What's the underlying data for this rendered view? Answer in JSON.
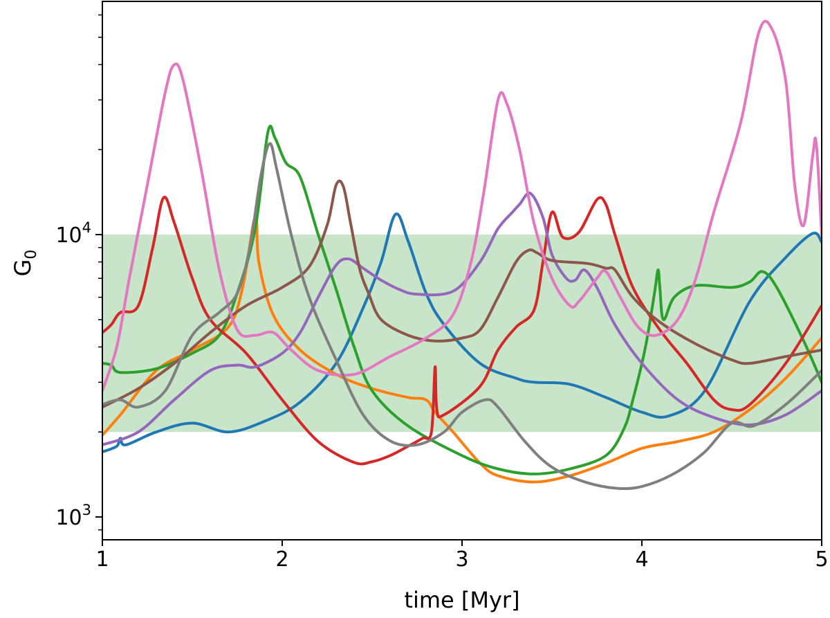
{
  "chart_data": {
    "type": "line",
    "title": "",
    "xlabel": "time [Myr]",
    "ylabel_main": "G",
    "ylabel_sub": "0",
    "yscale": "log",
    "xlim": [
      1,
      5
    ],
    "ylim": [
      830,
      67000
    ],
    "x_ticks": [
      {
        "value": 1,
        "label": "1"
      },
      {
        "value": 2,
        "label": "2"
      },
      {
        "value": 3,
        "label": "3"
      },
      {
        "value": 4,
        "label": "4"
      },
      {
        "value": 5,
        "label": "5"
      }
    ],
    "y_ticks": [
      {
        "value": 1000,
        "base": "10",
        "exp": "3"
      },
      {
        "value": 10000,
        "base": "10",
        "exp": "4"
      }
    ],
    "band": {
      "y0": 2000,
      "y1": 10000,
      "color": "#c9e5c9"
    },
    "grid": false,
    "legend": "none",
    "series": [
      {
        "name": "blue",
        "color": "#1f77b4",
        "points": [
          [
            1,
            1700
          ],
          [
            1.08,
            1780
          ],
          [
            1.1,
            1900
          ],
          [
            1.13,
            1800
          ],
          [
            1.3,
            2000
          ],
          [
            1.5,
            2150
          ],
          [
            1.7,
            2000
          ],
          [
            1.9,
            2180
          ],
          [
            2.1,
            2550
          ],
          [
            2.3,
            3500
          ],
          [
            2.45,
            5500
          ],
          [
            2.55,
            8000
          ],
          [
            2.63,
            11800
          ],
          [
            2.7,
            9500
          ],
          [
            2.8,
            6200
          ],
          [
            2.9,
            4800
          ],
          [
            3.1,
            3500
          ],
          [
            3.3,
            3100
          ],
          [
            3.4,
            3000
          ],
          [
            3.6,
            2950
          ],
          [
            3.8,
            2650
          ],
          [
            4.0,
            2350
          ],
          [
            4.15,
            2280
          ],
          [
            4.35,
            2800
          ],
          [
            4.6,
            5800
          ],
          [
            4.8,
            8300
          ],
          [
            4.95,
            10100
          ],
          [
            5.0,
            9400
          ]
        ]
      },
      {
        "name": "orange",
        "color": "#ff7f0e",
        "points": [
          [
            1,
            1950
          ],
          [
            1.1,
            2300
          ],
          [
            1.3,
            3300
          ],
          [
            1.5,
            3900
          ],
          [
            1.7,
            4700
          ],
          [
            1.78,
            6500
          ],
          [
            1.85,
            11600
          ],
          [
            1.87,
            8000
          ],
          [
            1.95,
            5200
          ],
          [
            2.1,
            3900
          ],
          [
            2.3,
            3200
          ],
          [
            2.5,
            2850
          ],
          [
            2.7,
            2650
          ],
          [
            2.8,
            2600
          ],
          [
            2.85,
            2350
          ],
          [
            2.95,
            2000
          ],
          [
            3.1,
            1550
          ],
          [
            3.2,
            1400
          ],
          [
            3.4,
            1330
          ],
          [
            3.6,
            1400
          ],
          [
            3.8,
            1550
          ],
          [
            4.0,
            1750
          ],
          [
            4.2,
            1850
          ],
          [
            4.4,
            2000
          ],
          [
            4.6,
            2400
          ],
          [
            4.8,
            3100
          ],
          [
            5.0,
            4300
          ]
        ]
      },
      {
        "name": "green",
        "color": "#2ca02c",
        "points": [
          [
            1,
            3500
          ],
          [
            1.05,
            3450
          ],
          [
            1.1,
            3250
          ],
          [
            1.3,
            3350
          ],
          [
            1.5,
            3800
          ],
          [
            1.65,
            4400
          ],
          [
            1.75,
            6200
          ],
          [
            1.85,
            10500
          ],
          [
            1.92,
            23000
          ],
          [
            1.96,
            22000
          ],
          [
            2.02,
            18000
          ],
          [
            2.1,
            16000
          ],
          [
            2.2,
            10000
          ],
          [
            2.3,
            6400
          ],
          [
            2.4,
            4000
          ],
          [
            2.5,
            2800
          ],
          [
            2.7,
            2100
          ],
          [
            3.0,
            1650
          ],
          [
            3.2,
            1480
          ],
          [
            3.4,
            1420
          ],
          [
            3.6,
            1480
          ],
          [
            3.8,
            1650
          ],
          [
            3.9,
            2050
          ],
          [
            3.95,
            2600
          ],
          [
            4.02,
            4000
          ],
          [
            4.07,
            6200
          ],
          [
            4.09,
            7500
          ],
          [
            4.1,
            6500
          ],
          [
            4.12,
            5000
          ],
          [
            4.18,
            6000
          ],
          [
            4.3,
            6600
          ],
          [
            4.5,
            6500
          ],
          [
            4.6,
            6800
          ],
          [
            4.67,
            7400
          ],
          [
            4.75,
            6500
          ],
          [
            4.9,
            4200
          ],
          [
            5.0,
            3000
          ]
        ]
      },
      {
        "name": "red",
        "color": "#d62728",
        "points": [
          [
            1,
            4500
          ],
          [
            1.05,
            4800
          ],
          [
            1.1,
            5300
          ],
          [
            1.2,
            5600
          ],
          [
            1.28,
            9000
          ],
          [
            1.34,
            13500
          ],
          [
            1.4,
            11000
          ],
          [
            1.5,
            7000
          ],
          [
            1.6,
            5000
          ],
          [
            1.8,
            3800
          ],
          [
            2.0,
            2600
          ],
          [
            2.2,
            1850
          ],
          [
            2.4,
            1560
          ],
          [
            2.5,
            1570
          ],
          [
            2.6,
            1650
          ],
          [
            2.7,
            1780
          ],
          [
            2.78,
            1900
          ],
          [
            2.83,
            2000
          ],
          [
            2.85,
            3400
          ],
          [
            2.86,
            2400
          ],
          [
            2.9,
            2300
          ],
          [
            3.1,
            2900
          ],
          [
            3.2,
            3900
          ],
          [
            3.3,
            4700
          ],
          [
            3.4,
            5400
          ],
          [
            3.45,
            8000
          ],
          [
            3.5,
            12000
          ],
          [
            3.56,
            9800
          ],
          [
            3.65,
            10200
          ],
          [
            3.75,
            13300
          ],
          [
            3.8,
            12800
          ],
          [
            3.85,
            10000
          ],
          [
            3.95,
            6500
          ],
          [
            4.1,
            4600
          ],
          [
            4.25,
            3500
          ],
          [
            4.4,
            2600
          ],
          [
            4.5,
            2400
          ],
          [
            4.6,
            2500
          ],
          [
            4.8,
            3500
          ],
          [
            5.0,
            5600
          ]
        ]
      },
      {
        "name": "purple",
        "color": "#9467bd",
        "points": [
          [
            1,
            1800
          ],
          [
            1.2,
            2000
          ],
          [
            1.4,
            2600
          ],
          [
            1.6,
            3300
          ],
          [
            1.75,
            3450
          ],
          [
            1.85,
            3400
          ],
          [
            2.0,
            3800
          ],
          [
            2.1,
            4500
          ],
          [
            2.2,
            6000
          ],
          [
            2.3,
            7800
          ],
          [
            2.37,
            8200
          ],
          [
            2.45,
            7600
          ],
          [
            2.55,
            6900
          ],
          [
            2.65,
            6400
          ],
          [
            2.75,
            6150
          ],
          [
            2.95,
            6300
          ],
          [
            3.1,
            8000
          ],
          [
            3.2,
            10500
          ],
          [
            3.28,
            12000
          ],
          [
            3.32,
            12800
          ],
          [
            3.38,
            14000
          ],
          [
            3.45,
            11500
          ],
          [
            3.5,
            8500
          ],
          [
            3.58,
            7000
          ],
          [
            3.63,
            6900
          ],
          [
            3.68,
            7500
          ],
          [
            3.75,
            6500
          ],
          [
            3.85,
            4800
          ],
          [
            4.0,
            3500
          ],
          [
            4.2,
            2600
          ],
          [
            4.4,
            2250
          ],
          [
            4.6,
            2120
          ],
          [
            4.8,
            2300
          ],
          [
            5.0,
            2800
          ]
        ]
      },
      {
        "name": "brown",
        "color": "#8c564b",
        "points": [
          [
            1,
            2450
          ],
          [
            1.2,
            2850
          ],
          [
            1.4,
            3500
          ],
          [
            1.6,
            4500
          ],
          [
            1.8,
            5600
          ],
          [
            2.0,
            6500
          ],
          [
            2.15,
            7700
          ],
          [
            2.25,
            10800
          ],
          [
            2.3,
            15000
          ],
          [
            2.34,
            14800
          ],
          [
            2.38,
            11000
          ],
          [
            2.43,
            7600
          ],
          [
            2.48,
            6200
          ],
          [
            2.55,
            5000
          ],
          [
            2.7,
            4400
          ],
          [
            2.85,
            4200
          ],
          [
            3.0,
            4300
          ],
          [
            3.1,
            4600
          ],
          [
            3.2,
            6000
          ],
          [
            3.3,
            8000
          ],
          [
            3.37,
            8800
          ],
          [
            3.42,
            8600
          ],
          [
            3.5,
            8100
          ],
          [
            3.7,
            7900
          ],
          [
            3.8,
            7600
          ],
          [
            3.85,
            7500
          ],
          [
            3.95,
            6000
          ],
          [
            4.1,
            4900
          ],
          [
            4.3,
            4100
          ],
          [
            4.5,
            3600
          ],
          [
            4.6,
            3500
          ],
          [
            4.8,
            3700
          ],
          [
            5.0,
            3900
          ]
        ]
      },
      {
        "name": "pink",
        "color": "#e377c2",
        "points": [
          [
            1,
            2800
          ],
          [
            1.08,
            4000
          ],
          [
            1.15,
            7000
          ],
          [
            1.25,
            15000
          ],
          [
            1.35,
            32000
          ],
          [
            1.4,
            40000
          ],
          [
            1.45,
            35000
          ],
          [
            1.55,
            17000
          ],
          [
            1.65,
            7500
          ],
          [
            1.75,
            4600
          ],
          [
            1.85,
            4400
          ],
          [
            1.95,
            4500
          ],
          [
            2.05,
            3900
          ],
          [
            2.2,
            3300
          ],
          [
            2.4,
            3200
          ],
          [
            2.6,
            3700
          ],
          [
            2.8,
            4300
          ],
          [
            2.95,
            5200
          ],
          [
            3.05,
            8000
          ],
          [
            3.12,
            14000
          ],
          [
            3.2,
            30000
          ],
          [
            3.25,
            29000
          ],
          [
            3.32,
            20000
          ],
          [
            3.4,
            11000
          ],
          [
            3.5,
            7000
          ],
          [
            3.6,
            5600
          ],
          [
            3.65,
            5800
          ],
          [
            3.75,
            7000
          ],
          [
            3.8,
            7400
          ],
          [
            3.88,
            6000
          ],
          [
            3.98,
            4700
          ],
          [
            4.08,
            4400
          ],
          [
            4.2,
            5000
          ],
          [
            4.3,
            7000
          ],
          [
            4.4,
            12000
          ],
          [
            4.55,
            25000
          ],
          [
            4.65,
            52000
          ],
          [
            4.72,
            54000
          ],
          [
            4.8,
            35000
          ],
          [
            4.85,
            15000
          ],
          [
            4.9,
            10800
          ],
          [
            4.95,
            19000
          ],
          [
            4.97,
            21000
          ],
          [
            5.0,
            10000
          ]
        ]
      },
      {
        "name": "gray",
        "color": "#7f7f7f",
        "points": [
          [
            1,
            2500
          ],
          [
            1.1,
            2600
          ],
          [
            1.2,
            2450
          ],
          [
            1.35,
            2800
          ],
          [
            1.5,
            4400
          ],
          [
            1.65,
            5300
          ],
          [
            1.75,
            6200
          ],
          [
            1.82,
            9000
          ],
          [
            1.88,
            16000
          ],
          [
            1.93,
            21000
          ],
          [
            1.97,
            17000
          ],
          [
            2.05,
            10000
          ],
          [
            2.15,
            6000
          ],
          [
            2.3,
            3600
          ],
          [
            2.45,
            2300
          ],
          [
            2.6,
            1860
          ],
          [
            2.75,
            1800
          ],
          [
            2.9,
            2000
          ],
          [
            3.0,
            2350
          ],
          [
            3.13,
            2600
          ],
          [
            3.2,
            2450
          ],
          [
            3.35,
            1850
          ],
          [
            3.5,
            1500
          ],
          [
            3.7,
            1320
          ],
          [
            3.9,
            1260
          ],
          [
            4.05,
            1310
          ],
          [
            4.2,
            1450
          ],
          [
            4.35,
            1700
          ],
          [
            4.5,
            2150
          ],
          [
            4.62,
            2100
          ],
          [
            4.8,
            2500
          ],
          [
            5.0,
            3300
          ]
        ]
      }
    ]
  }
}
